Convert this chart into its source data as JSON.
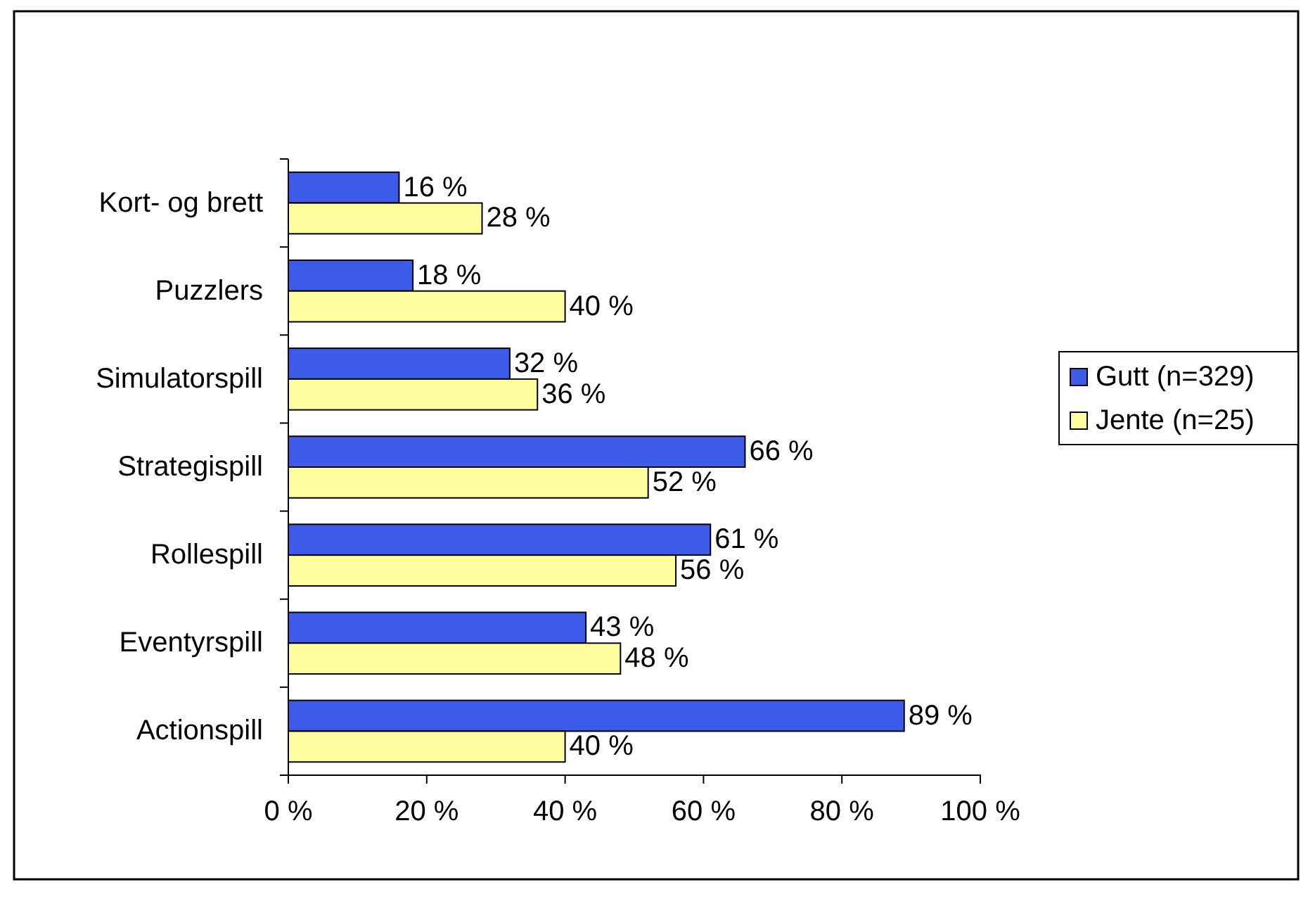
{
  "chart_data": {
    "type": "bar",
    "orientation": "horizontal",
    "categories": [
      "Kort- og brett",
      "Puzzlers",
      "Simulatorspill",
      "Strategispill",
      "Rollespill",
      "Eventyrspill",
      "Actionspill"
    ],
    "series": [
      {
        "name": "Gutt (n=329)",
        "color": "#3b5be8",
        "values": [
          16,
          18,
          32,
          66,
          61,
          43,
          89
        ],
        "value_labels": [
          "16 %",
          "18 %",
          "32 %",
          "66 %",
          "61 %",
          "43 %",
          "89 %"
        ]
      },
      {
        "name": "Jente (n=25)",
        "color": "#ffffa0",
        "values": [
          28,
          40,
          36,
          52,
          56,
          48,
          40
        ],
        "value_labels": [
          "28 %",
          "40 %",
          "36 %",
          "52 %",
          "56 %",
          "48 %",
          "40 %"
        ]
      }
    ],
    "xlim": [
      0,
      100
    ],
    "xticks": [
      {
        "value": 0,
        "label": "0 %"
      },
      {
        "value": 20,
        "label": "20 %"
      },
      {
        "value": 40,
        "label": "40 %"
      },
      {
        "value": 60,
        "label": "60 %"
      },
      {
        "value": 80,
        "label": "80 %"
      },
      {
        "value": 100,
        "label": "100 %"
      }
    ],
    "grid": false,
    "legend": "right"
  }
}
